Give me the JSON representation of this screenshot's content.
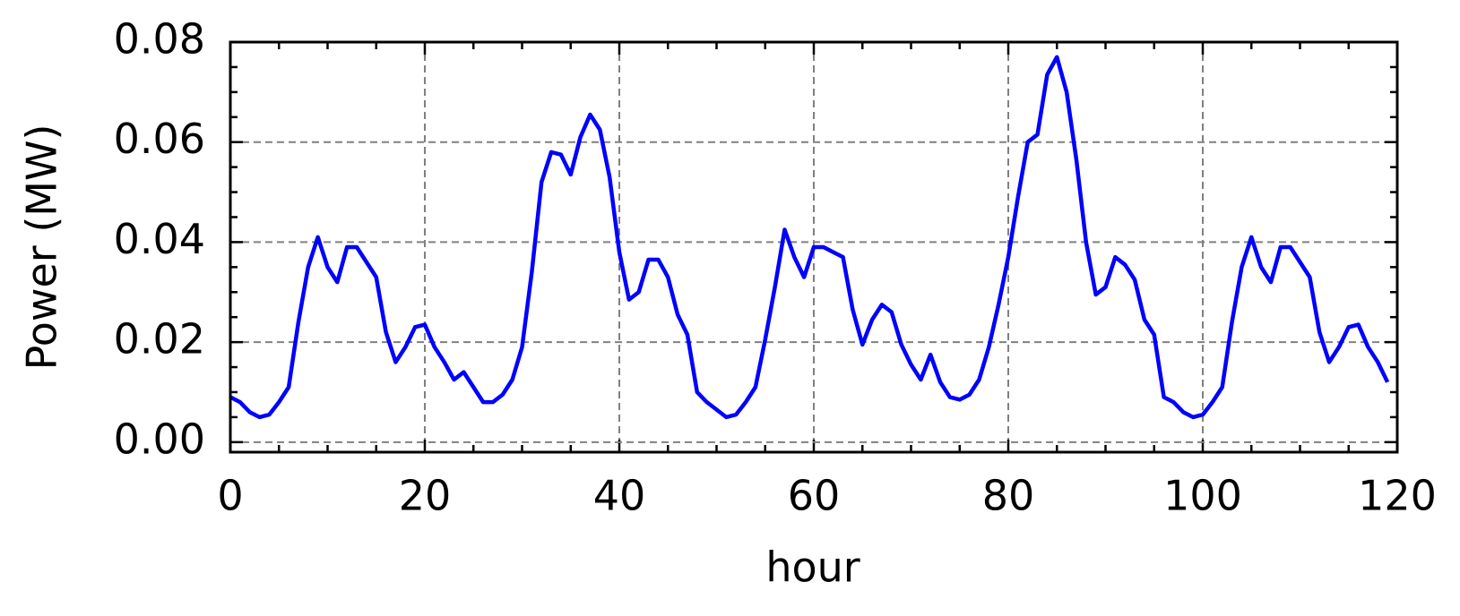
{
  "chart_data": {
    "type": "line",
    "x_label": "hour",
    "y_label": "Power (MW)",
    "x": [
      0,
      1,
      2,
      3,
      4,
      5,
      6,
      7,
      8,
      9,
      10,
      11,
      12,
      13,
      14,
      15,
      16,
      17,
      18,
      19,
      20,
      21,
      22,
      23,
      24,
      25,
      26,
      27,
      28,
      29,
      30,
      31,
      32,
      33,
      34,
      35,
      36,
      37,
      38,
      39,
      40,
      41,
      42,
      43,
      44,
      45,
      46,
      47,
      48,
      49,
      50,
      51,
      52,
      53,
      54,
      55,
      56,
      57,
      58,
      59,
      60,
      61,
      62,
      63,
      64,
      65,
      66,
      67,
      68,
      69,
      70,
      71,
      72,
      73,
      74,
      75,
      76,
      77,
      78,
      79,
      80,
      81,
      82,
      83,
      84,
      85,
      86,
      87,
      88,
      89,
      90,
      91,
      92,
      93,
      94,
      95,
      96,
      97,
      98,
      99,
      100,
      101,
      102,
      103,
      104,
      105,
      106,
      107,
      108,
      109,
      110,
      111,
      112,
      113,
      114,
      115,
      116,
      117,
      118,
      119
    ],
    "series": [
      {
        "color": "#0000ff",
        "values": [
          0.009,
          0.008,
          0.006,
          0.005,
          0.0055,
          0.008,
          0.011,
          0.024,
          0.035,
          0.041,
          0.035,
          0.032,
          0.039,
          0.039,
          0.036,
          0.033,
          0.022,
          0.016,
          0.019,
          0.023,
          0.0235,
          0.019,
          0.016,
          0.0125,
          0.014,
          0.011,
          0.008,
          0.008,
          0.0095,
          0.0125,
          0.019,
          0.034,
          0.052,
          0.058,
          0.0575,
          0.0535,
          0.061,
          0.0655,
          0.0625,
          0.053,
          0.038,
          0.0285,
          0.03,
          0.0365,
          0.0365,
          0.033,
          0.0255,
          0.0215,
          0.01,
          0.008,
          0.0065,
          0.005,
          0.0055,
          0.008,
          0.011,
          0.0205,
          0.031,
          0.0425,
          0.037,
          0.033,
          0.039,
          0.039,
          0.038,
          0.037,
          0.0265,
          0.0195,
          0.0245,
          0.0275,
          0.026,
          0.0195,
          0.0155,
          0.0125,
          0.0175,
          0.012,
          0.009,
          0.0085,
          0.0095,
          0.0125,
          0.019,
          0.0275,
          0.037,
          0.049,
          0.06,
          0.0615,
          0.0735,
          0.077,
          0.07,
          0.0565,
          0.04,
          0.0295,
          0.031,
          0.037,
          0.0355,
          0.0325,
          0.0245,
          0.0215,
          0.009,
          0.008,
          0.006,
          0.005,
          0.0055,
          0.008,
          0.011,
          0.024,
          0.035,
          0.041,
          0.035,
          0.032,
          0.039,
          0.039,
          0.036,
          0.033,
          0.022,
          0.016,
          0.019,
          0.023,
          0.0235,
          0.019,
          0.016,
          0.012
        ]
      }
    ],
    "xlim": [
      0,
      120
    ],
    "ylim": [
      -0.002,
      0.08
    ],
    "xticks": [
      0,
      20,
      40,
      60,
      80,
      100,
      120
    ],
    "yticks": [
      {
        "value": 0,
        "label": "0.00"
      },
      0.02,
      0.04,
      0.06,
      0.08
    ],
    "xminorticks": [
      5,
      10,
      15,
      25,
      30,
      35,
      45,
      50,
      55,
      65,
      70,
      75,
      85,
      90,
      95,
      105,
      110,
      115
    ],
    "yminorticks": [
      0.005,
      0.01,
      0.015,
      0.025,
      0.03,
      0.035,
      0.045,
      0.05,
      0.055,
      0.065,
      0.07,
      0.075
    ],
    "grid": true
  }
}
